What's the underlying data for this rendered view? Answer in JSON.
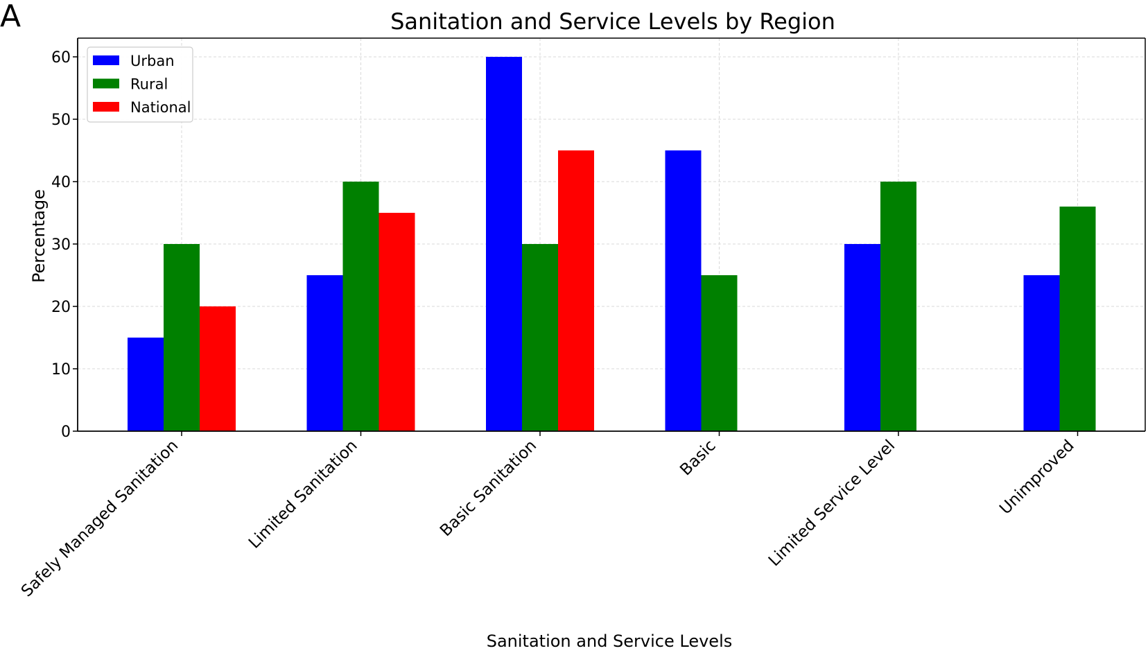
{
  "panel_label": "A",
  "chart_data": {
    "type": "bar",
    "title": "Sanitation and Service Levels by Region",
    "xlabel": "Sanitation and Service Levels",
    "ylabel": "Percentage",
    "ylim": [
      0,
      63
    ],
    "yticks": [
      0,
      10,
      20,
      30,
      40,
      50,
      60
    ],
    "grid": true,
    "legend_position": "top-left",
    "categories": [
      "Safely Managed Sanitation",
      "Limited Sanitation",
      "Basic Sanitation",
      "Basic",
      "Limited Service Level",
      "Unimproved"
    ],
    "series": [
      {
        "name": "Urban",
        "color": "#0000ff",
        "values": [
          15,
          25,
          60,
          45,
          30,
          25
        ]
      },
      {
        "name": "Rural",
        "color": "#008000",
        "values": [
          30,
          40,
          30,
          25,
          40,
          36
        ]
      },
      {
        "name": "National",
        "color": "#ff0000",
        "values": [
          20,
          35,
          45,
          null,
          null,
          null
        ]
      }
    ]
  }
}
